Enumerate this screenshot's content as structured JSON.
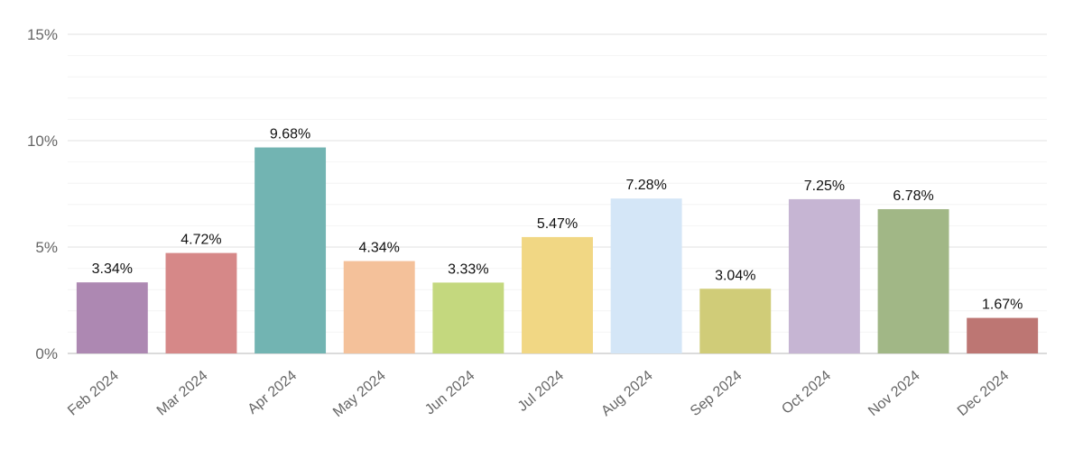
{
  "chart_data": {
    "type": "bar",
    "title": "",
    "xlabel": "",
    "ylabel": "",
    "categories": [
      "Feb 2024",
      "Mar 2024",
      "Apr 2024",
      "May 2024",
      "Jun 2024",
      "Jul 2024",
      "Aug 2024",
      "Sep 2024",
      "Oct 2024",
      "Nov 2024",
      "Dec 2024"
    ],
    "values": [
      3.34,
      4.72,
      9.68,
      4.34,
      3.33,
      5.47,
      7.28,
      3.04,
      7.25,
      6.78,
      1.67
    ],
    "value_labels": [
      "3.34%",
      "4.72%",
      "9.68%",
      "4.34%",
      "3.33%",
      "5.47%",
      "7.28%",
      "3.04%",
      "7.25%",
      "6.78%",
      "1.67%"
    ],
    "bar_colors": [
      "#ad88b2",
      "#d68888",
      "#72b4b2",
      "#f4c19a",
      "#c4d87e",
      "#f1d784",
      "#d4e6f7",
      "#d0cc78",
      "#c6b5d3",
      "#a1b786",
      "#bd7673"
    ],
    "ylim": [
      0,
      15
    ],
    "y_ticks": [
      0,
      5,
      10,
      15
    ],
    "y_tick_labels": [
      "0%",
      "5%",
      "10%",
      "15%"
    ],
    "grid": true,
    "legend": "none"
  }
}
